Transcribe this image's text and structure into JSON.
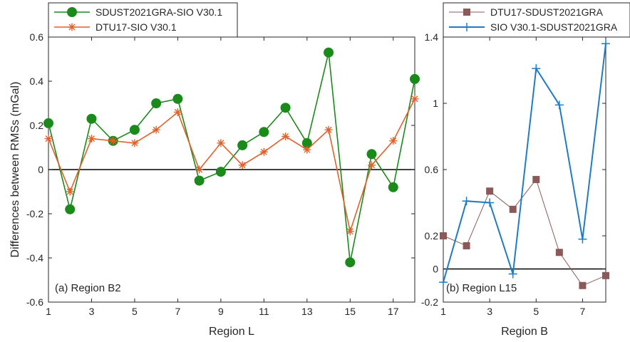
{
  "chart_data": [
    {
      "type": "line",
      "annotation": "(a) Region B2",
      "xlabel": "Region L",
      "ylabel": "Differences between RMSs (mGal)",
      "xlim": [
        1,
        18
      ],
      "ylim": [
        -0.6,
        0.6
      ],
      "xticks": [
        1,
        3,
        5,
        7,
        9,
        11,
        13,
        15,
        17
      ],
      "yticks": [
        -0.6,
        -0.4,
        -0.2,
        0,
        0.2,
        0.4,
        0.6
      ],
      "x": [
        1,
        2,
        3,
        4,
        5,
        6,
        7,
        8,
        9,
        10,
        11,
        12,
        13,
        14,
        15,
        16,
        17,
        18
      ],
      "series": [
        {
          "name": "SDUST2021GRA-SIO V30.1",
          "color": "#1a8a1a",
          "marker": "circle",
          "values": [
            0.21,
            -0.18,
            0.23,
            0.13,
            0.18,
            0.3,
            0.32,
            -0.05,
            -0.01,
            0.11,
            0.17,
            0.28,
            0.12,
            0.53,
            -0.42,
            0.07,
            -0.08,
            0.41
          ]
        },
        {
          "name": "DTU17-SIO V30.1",
          "color": "#e0612a",
          "marker": "asterisk",
          "values": [
            0.14,
            -0.1,
            0.14,
            0.13,
            0.12,
            0.18,
            0.26,
            0.0,
            0.12,
            0.02,
            0.08,
            0.15,
            0.09,
            0.18,
            -0.28,
            0.02,
            0.13,
            0.32
          ]
        }
      ],
      "legend": "top-left",
      "zero_line": true
    },
    {
      "type": "line",
      "annotation": "(b) Region L15",
      "xlabel": "Region B",
      "ylabel": "",
      "xlim": [
        1,
        8
      ],
      "ylim": [
        -0.2,
        1.4
      ],
      "xticks": [
        1,
        3,
        5,
        7
      ],
      "yticks": [
        -0.2,
        0,
        0.2,
        0.6,
        1,
        1.4
      ],
      "x": [
        1,
        2,
        3,
        4,
        5,
        6,
        7,
        8
      ],
      "series": [
        {
          "name": "DTU17-SDUST2021GRA",
          "color": "#8b5a58",
          "marker": "square",
          "values": [
            0.2,
            0.14,
            0.47,
            0.36,
            0.54,
            0.1,
            -0.1,
            -0.04
          ]
        },
        {
          "name": "SIO V30.1-SDUST2021GRA",
          "color": "#1f7bc4",
          "marker": "plus",
          "values": [
            -0.08,
            0.41,
            0.4,
            -0.03,
            1.21,
            0.99,
            0.18,
            1.36
          ]
        }
      ],
      "legend": "top",
      "zero_line": true
    }
  ]
}
